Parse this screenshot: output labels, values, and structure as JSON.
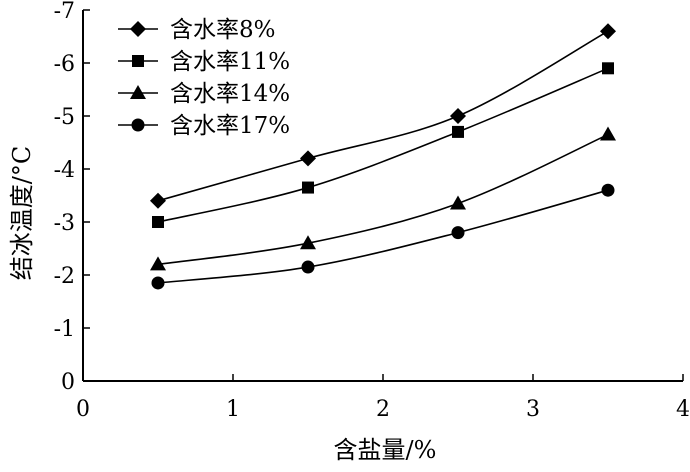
{
  "chart_data": {
    "type": "line",
    "xlabel": "含盐量/%",
    "ylabel": "结冰温度/°C",
    "xlim": [
      0,
      4
    ],
    "ylim": [
      0,
      -7
    ],
    "y_axis_inverted": true,
    "x_ticks": [
      "0",
      "1",
      "2",
      "3",
      "4"
    ],
    "y_ticks": [
      "0",
      "-1",
      "-2",
      "-3",
      "-4",
      "-5",
      "-6",
      "-7"
    ],
    "legend_position": "top-left",
    "grid": false,
    "series": [
      {
        "name": "含水率8%",
        "marker": "diamond",
        "x": [
          0.5,
          1.5,
          2.5,
          3.5
        ],
        "y": [
          -3.4,
          -4.2,
          -5.0,
          -6.6
        ]
      },
      {
        "name": "含水率11%",
        "marker": "square",
        "x": [
          0.5,
          1.5,
          2.5,
          3.5
        ],
        "y": [
          -3.0,
          -3.65,
          -4.7,
          -5.9
        ]
      },
      {
        "name": "含水率14%",
        "marker": "triangle",
        "x": [
          0.5,
          1.5,
          2.5,
          3.5
        ],
        "y": [
          -2.2,
          -2.6,
          -3.35,
          -4.65
        ]
      },
      {
        "name": "含水率17%",
        "marker": "circle",
        "x": [
          0.5,
          1.5,
          2.5,
          3.5
        ],
        "y": [
          -1.85,
          -2.15,
          -2.8,
          -3.6
        ]
      }
    ],
    "colors": {
      "line": "#000000",
      "marker": "#000000"
    }
  }
}
